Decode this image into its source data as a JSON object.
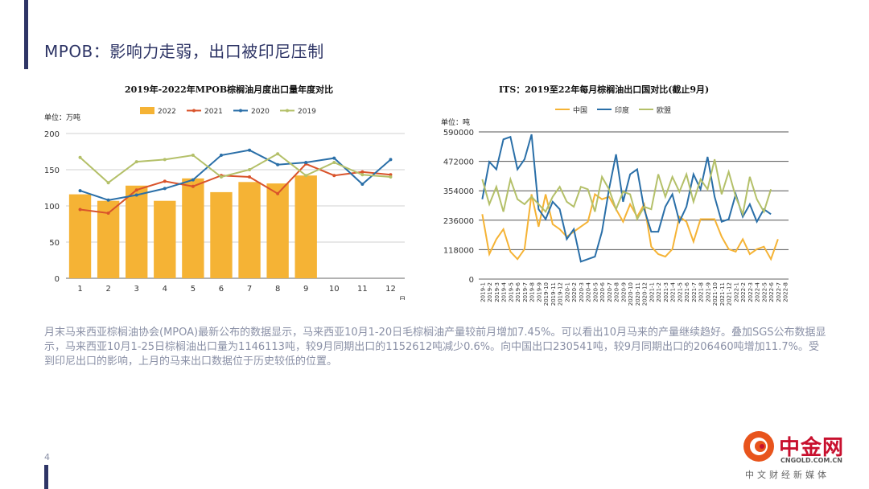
{
  "slide": {
    "title": "MPOB：影响力走弱，出口被印尼压制",
    "page_number": "4",
    "body_text": "月末马来西亚棕榈油协会(MPOA)最新公布的数据显示，马来西亚10月1-20日毛棕榈油产量较前月增加7.45%。可以看出10月马来的产量继续趋好。叠加SGS公布数据显示，马来西亚10月1-25日棕榈油出口量为1146113吨，较9月同期出口的1152612吨减少0.6%。向中国出口230541吨，较9月同期出口的206460吨增加11.7%。受到印尼出口的影响，上月的马来出口数据位于历史较低的位置。",
    "accent_color": "#2e3566"
  },
  "logo": {
    "name": "中金网",
    "domain": "CNGOLD.COM.CN",
    "tagline": "中文财经新媒体",
    "color": "#c8102e"
  },
  "chart_data": [
    {
      "type": "bar",
      "title": "2019年-2022年MPOB棕榈油月度出口量年度对比",
      "unit_label": "单位：万吨",
      "xlabel": "月",
      "ylabel": "",
      "ylim": [
        0,
        200
      ],
      "yticks": [
        0,
        50,
        100,
        150,
        200
      ],
      "grid": true,
      "legend": "top",
      "categories": [
        "1",
        "2",
        "3",
        "4",
        "5",
        "6",
        "7",
        "8",
        "9",
        "10",
        "11",
        "12"
      ],
      "series": [
        {
          "name": "2022",
          "type": "bar",
          "color": "#f5b335",
          "values": [
            116,
            107,
            128,
            107,
            138,
            119,
            133,
            131,
            142,
            null,
            null,
            null
          ]
        },
        {
          "name": "2021",
          "type": "line",
          "color": "#d9532b",
          "values": [
            95,
            90,
            122,
            134,
            127,
            142,
            140,
            117,
            158,
            142,
            147,
            143
          ]
        },
        {
          "name": "2020",
          "type": "line",
          "color": "#2a6fa8",
          "values": [
            121,
            108,
            115,
            124,
            136,
            170,
            177,
            157,
            160,
            166,
            130,
            164
          ]
        },
        {
          "name": "2019",
          "type": "line",
          "color": "#b4c069",
          "values": [
            167,
            132,
            161,
            164,
            170,
            140,
            150,
            172,
            142,
            160,
            143,
            140
          ]
        }
      ]
    },
    {
      "type": "line",
      "title": "ITS：2019至22年每月棕榈油出口国对比(截止9月)",
      "unit_label": "单位：吨",
      "xlabel": "",
      "ylabel": "",
      "ylim": [
        0,
        590000
      ],
      "yticks": [
        "0",
        "118000",
        "236000",
        "354000",
        "472000",
        "590000"
      ],
      "grid": true,
      "legend": "top",
      "categories": [
        "2019-1",
        "2019-2",
        "2019-3",
        "2019-4",
        "2019-5",
        "2019-6",
        "2019-7",
        "2019-8",
        "2019-9",
        "2019-10",
        "2019-11",
        "2019-12",
        "2020-1",
        "2020-2",
        "2020-3",
        "2020-4",
        "2020-5",
        "2020-6",
        "2020-7",
        "2020-8",
        "2020-9",
        "2020-10",
        "2020-11",
        "2020-12",
        "2021-1",
        "2021-2",
        "2021-3",
        "2021-4",
        "2021-5",
        "2021-6",
        "2021-7",
        "2021-8",
        "2021-9",
        "2021-10",
        "2021-11",
        "2021-12",
        "2022-1",
        "2022-2",
        "2022-3",
        "2022-4",
        "2022-5",
        "2022-6",
        "2022-7",
        "2022-8"
      ],
      "series": [
        {
          "name": "中国",
          "color": "#f5b335",
          "values": [
            260000,
            100000,
            160000,
            200000,
            110000,
            80000,
            120000,
            340000,
            210000,
            340000,
            220000,
            200000,
            170000,
            190000,
            210000,
            230000,
            340000,
            320000,
            330000,
            280000,
            230000,
            300000,
            250000,
            300000,
            130000,
            100000,
            90000,
            120000,
            250000,
            230000,
            150000,
            240000,
            240000,
            240000,
            170000,
            120000,
            110000,
            160000,
            100000,
            120000,
            130000,
            80000,
            160000,
            0
          ]
        },
        {
          "name": "印度",
          "color": "#2a6fa8",
          "values": [
            320000,
            470000,
            440000,
            560000,
            570000,
            440000,
            480000,
            580000,
            280000,
            240000,
            310000,
            280000,
            160000,
            200000,
            70000,
            80000,
            90000,
            190000,
            360000,
            500000,
            310000,
            420000,
            440000,
            280000,
            190000,
            190000,
            290000,
            340000,
            230000,
            290000,
            420000,
            360000,
            490000,
            330000,
            230000,
            240000,
            340000,
            250000,
            300000,
            230000,
            280000,
            260000,
            0,
            0
          ]
        },
        {
          "name": "欧盟",
          "color": "#b4c069",
          "values": [
            400000,
            300000,
            370000,
            270000,
            400000,
            320000,
            300000,
            330000,
            300000,
            270000,
            330000,
            370000,
            310000,
            290000,
            370000,
            360000,
            270000,
            410000,
            360000,
            280000,
            350000,
            340000,
            240000,
            290000,
            280000,
            420000,
            330000,
            410000,
            350000,
            420000,
            310000,
            400000,
            360000,
            480000,
            340000,
            430000,
            330000,
            260000,
            410000,
            320000,
            270000,
            360000,
            0,
            0
          ]
        }
      ]
    }
  ]
}
